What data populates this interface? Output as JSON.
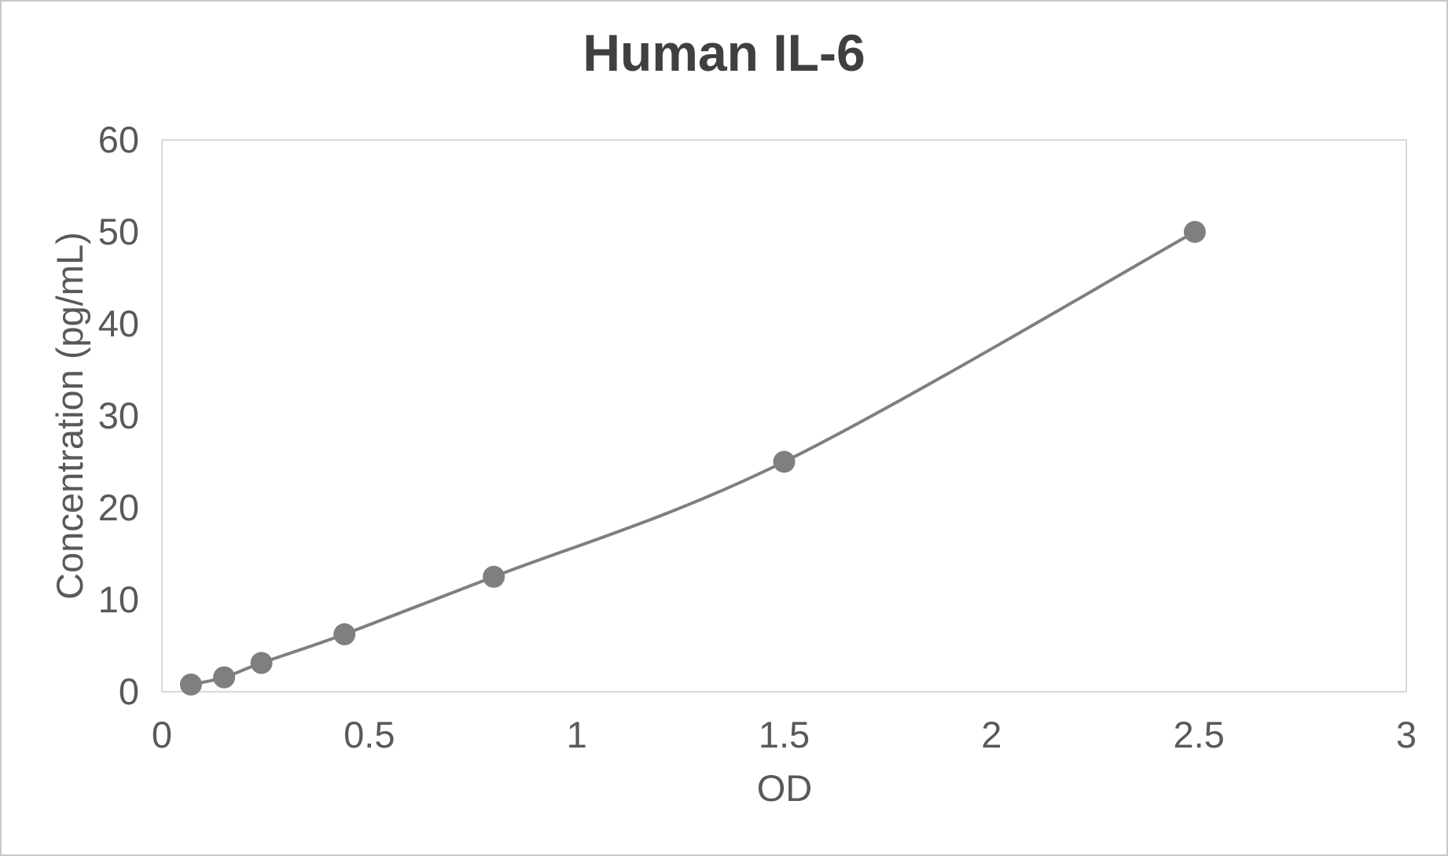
{
  "title": "Human IL-6",
  "colors": {
    "background": "#ffffff",
    "outer_border": "#c9c9c9",
    "plot_border": "#d9d9d9",
    "series": "#7f7f7f",
    "title_text": "#404040",
    "tick_text": "#595959"
  },
  "chart_data": {
    "type": "line",
    "title": "Human IL-6",
    "xlabel": "OD",
    "ylabel": "Concentration (pg/mL)",
    "xlim": [
      0,
      3
    ],
    "ylim": [
      0,
      60
    ],
    "x_ticks": [
      0,
      0.5,
      1,
      1.5,
      2,
      2.5,
      3
    ],
    "y_ticks": [
      0,
      10,
      20,
      30,
      40,
      50,
      60
    ],
    "grid": false,
    "legend": false,
    "line_style": "smooth",
    "marker": "circle",
    "series": [
      {
        "x": [
          0.07,
          0.15,
          0.24,
          0.44,
          0.8,
          1.5,
          2.49
        ],
        "y": [
          0.78,
          1.56,
          3.13,
          6.25,
          12.5,
          25,
          50
        ]
      }
    ]
  }
}
